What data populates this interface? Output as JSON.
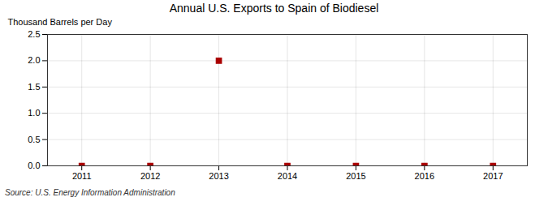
{
  "chart_data": {
    "type": "scatter",
    "title": "Annual U.S. Exports to Spain of Biodiesel",
    "ylabel": "Thousand Barrels per Day",
    "source": "Source: U.S. Energy Information Administration",
    "x": [
      2011,
      2012,
      2013,
      2014,
      2015,
      2016,
      2017
    ],
    "values": [
      0,
      0,
      2.0,
      0,
      0,
      0,
      0
    ],
    "color": "#aa0000",
    "marker": "square",
    "xlim": [
      2010.5,
      2017.5
    ],
    "xticks": [
      2011,
      2012,
      2013,
      2014,
      2015,
      2016,
      2017
    ],
    "ylim": [
      0,
      2.5
    ],
    "yticks": [
      {
        "value": 0,
        "label": "0.0"
      },
      0.5,
      {
        "value": 1,
        "label": "1.0"
      },
      1.5,
      {
        "value": 2,
        "label": "2.0"
      },
      2.5
    ],
    "grid": true
  }
}
